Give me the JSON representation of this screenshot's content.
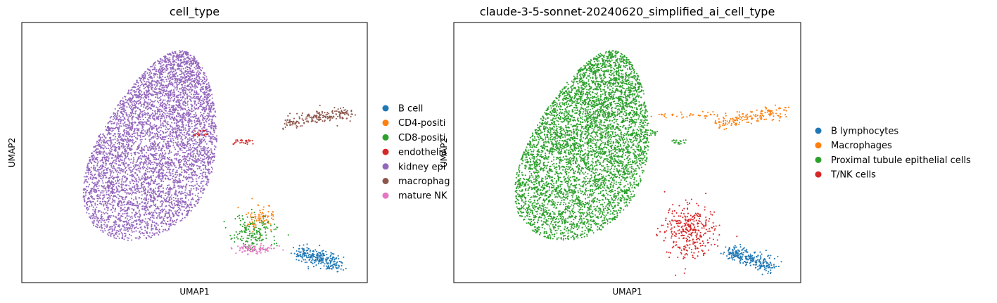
{
  "chart_data": [
    {
      "type": "scatter",
      "title": "cell_type",
      "xlabel": "UMAP1",
      "ylabel": "UMAP2",
      "grid": false,
      "ticks": false,
      "legend_placement": "right, outside (partially covered by next panel)",
      "series": [
        {
          "name": "B cell",
          "color": "#1f77b4"
        },
        {
          "name": "CD4-positi",
          "color": "#ff7f0e"
        },
        {
          "name": "CD8-positi",
          "color": "#2ca02c"
        },
        {
          "name": "endothelia",
          "color": "#d62728"
        },
        {
          "name": "kidney epi",
          "color": "#9467bd"
        },
        {
          "name": "macrophag",
          "color": "#8c564b"
        },
        {
          "name": "mature NK",
          "color": "#e377c2"
        }
      ],
      "clusters": [
        {
          "series": "kidney epi",
          "region": "large left blob",
          "n": 5200
        },
        {
          "series": "macrophag",
          "region": "upper-right streak",
          "n": 200
        },
        {
          "series": "endothelia",
          "region": "small middle streaks",
          "n": 50
        },
        {
          "series": "CD4-positi",
          "region": "lower-middle top",
          "n": 80
        },
        {
          "series": "CD8-positi",
          "region": "lower-middle core",
          "n": 170
        },
        {
          "series": "mature NK",
          "region": "lower-middle bottom",
          "n": 90
        },
        {
          "series": "B cell",
          "region": "lower-right",
          "n": 260
        }
      ]
    },
    {
      "type": "scatter",
      "title": "claude-3-5-sonnet-20240620_simplified_ai_cell_type",
      "xlabel": "UMAP1",
      "ylabel": "UMAP2",
      "grid": false,
      "ticks": false,
      "legend_placement": "right, outside",
      "series": [
        {
          "name": "B lymphocytes",
          "color": "#1f77b4"
        },
        {
          "name": "Macrophages",
          "color": "#ff7f0e"
        },
        {
          "name": "Proximal tubule epithelial cells",
          "color": "#2ca02c"
        },
        {
          "name": "T/NK cells",
          "color": "#d62728"
        }
      ],
      "clusters": [
        {
          "series": "Proximal tubule epithelial cells",
          "region": "large left blob + small middle streaks",
          "n": 5250
        },
        {
          "series": "Macrophages",
          "region": "upper-right streak",
          "n": 210
        },
        {
          "series": "T/NK cells",
          "region": "lower-middle",
          "n": 340
        },
        {
          "series": "B lymphocytes",
          "region": "lower-right",
          "n": 260
        }
      ]
    }
  ]
}
